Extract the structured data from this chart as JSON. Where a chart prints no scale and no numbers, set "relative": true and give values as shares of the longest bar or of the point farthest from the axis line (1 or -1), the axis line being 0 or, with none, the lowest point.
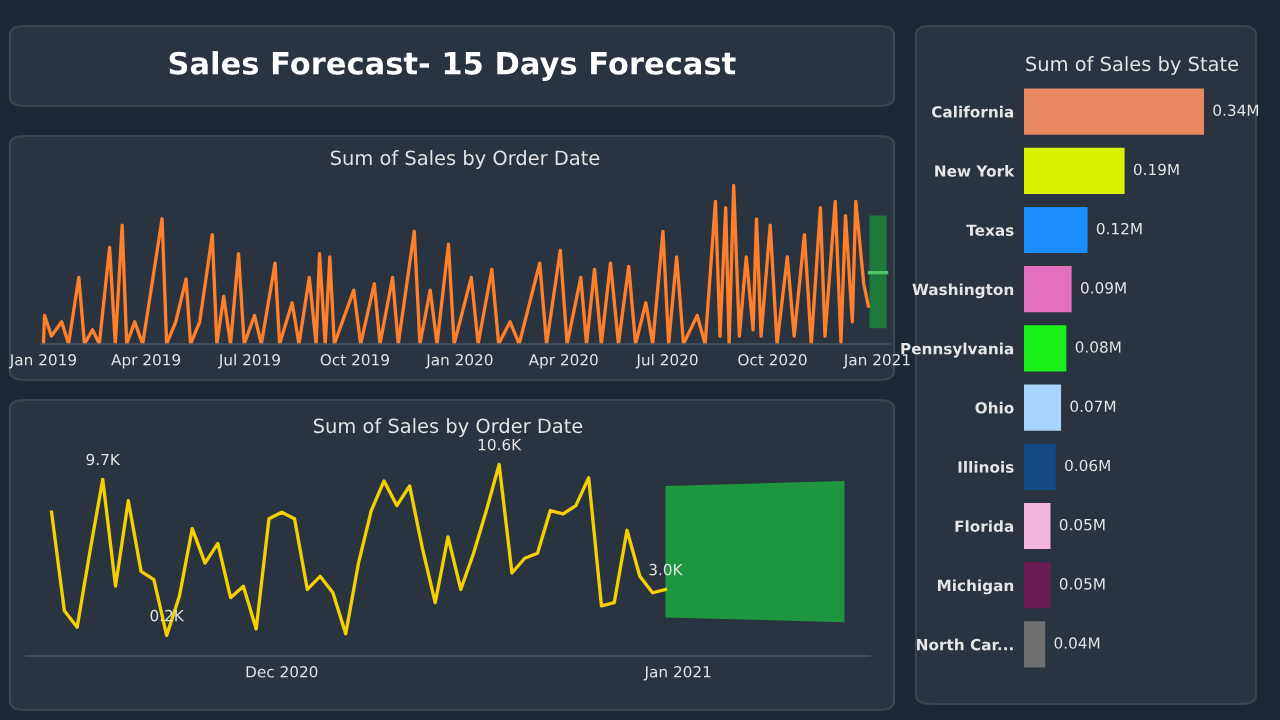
{
  "chart_data": [
    {
      "type": "other",
      "title": "Sales Forecast- 15 Days Forecast"
    },
    {
      "type": "line",
      "title": "Sum of Sales by Order Date",
      "relative": true,
      "tick_labels": "x",
      "xlim": [
        "2018-12-29",
        "2021-01-12"
      ],
      "xticks": [
        {
          "value": "2019-01-01",
          "label": "Jan 2019"
        },
        {
          "value": "2019-04-01",
          "label": "Apr 2019"
        },
        {
          "value": "2019-07-01",
          "label": "Jul 2019"
        },
        {
          "value": "2019-10-01",
          "label": "Oct 2019"
        },
        {
          "value": "2020-01-01",
          "label": "Jan 2020"
        },
        {
          "value": "2020-04-01",
          "label": "Apr 2020"
        },
        {
          "value": "2020-07-01",
          "label": "Jul 2020"
        },
        {
          "value": "2020-10-01",
          "label": "Oct 2020"
        },
        {
          "value": "2021-01-01",
          "label": "Jan 2021"
        }
      ],
      "series": [
        {
          "type": "line",
          "color": "#ff7f2a",
          "x": [
            "2019-01-01",
            "2019-01-02",
            "2019-01-08",
            "2019-01-17",
            "2019-01-23",
            "2019-02-01",
            "2019-02-06",
            "2019-02-13",
            "2019-02-19",
            "2019-02-28",
            "2019-03-05",
            "2019-03-11",
            "2019-03-15",
            "2019-03-22",
            "2019-03-29",
            "2019-04-15",
            "2019-04-19",
            "2019-04-27",
            "2019-05-06",
            "2019-05-10",
            "2019-05-18",
            "2019-05-29",
            "2019-06-02",
            "2019-06-08",
            "2019-06-14",
            "2019-06-21",
            "2019-06-26",
            "2019-07-05",
            "2019-07-11",
            "2019-07-23",
            "2019-07-27",
            "2019-08-07",
            "2019-08-13",
            "2019-08-22",
            "2019-08-28",
            "2019-08-31",
            "2019-09-05",
            "2019-09-09",
            "2019-09-13",
            "2019-09-30",
            "2019-10-06",
            "2019-10-18",
            "2019-10-23",
            "2019-11-03",
            "2019-11-08",
            "2019-11-22",
            "2019-11-27",
            "2019-12-06",
            "2019-12-12",
            "2019-12-22",
            "2019-12-27",
            "2020-01-11",
            "2020-01-17",
            "2020-01-29",
            "2020-02-04",
            "2020-02-14",
            "2020-02-22",
            "2020-03-11",
            "2020-03-17",
            "2020-03-29",
            "2020-04-04",
            "2020-04-16",
            "2020-04-21",
            "2020-04-28",
            "2020-05-04",
            "2020-05-12",
            "2020-05-19",
            "2020-05-28",
            "2020-06-03",
            "2020-06-12",
            "2020-06-18",
            "2020-06-27",
            "2020-07-02",
            "2020-07-09",
            "2020-07-15",
            "2020-07-27",
            "2020-08-03",
            "2020-08-12",
            "2020-08-16",
            "2020-08-21",
            "2020-08-24",
            "2020-08-28",
            "2020-09-02",
            "2020-09-08",
            "2020-09-14",
            "2020-09-17",
            "2020-09-21",
            "2020-09-29",
            "2020-10-05",
            "2020-10-14",
            "2020-10-20",
            "2020-10-29",
            "2020-11-04",
            "2020-11-12",
            "2020-11-16",
            "2020-11-25",
            "2020-11-30",
            "2020-12-04",
            "2020-12-10",
            "2020-12-13",
            "2020-12-20",
            "2020-12-24"
          ],
          "values": [
            0,
            0.18,
            0.05,
            0.14,
            0,
            0.42,
            0,
            0.09,
            0,
            0.61,
            0,
            0.75,
            0,
            0.14,
            0,
            0.79,
            0,
            0.14,
            0.41,
            0,
            0.14,
            0.69,
            0,
            0.3,
            0,
            0.57,
            0,
            0.18,
            0,
            0.51,
            0,
            0.26,
            0,
            0.42,
            0,
            0.57,
            0,
            0.55,
            0,
            0.34,
            0,
            0.38,
            0,
            0.42,
            0,
            0.71,
            0,
            0.34,
            0,
            0.63,
            0,
            0.42,
            0,
            0.47,
            0,
            0.14,
            0,
            0.51,
            0,
            0.59,
            0,
            0.42,
            0,
            0.47,
            0,
            0.51,
            0,
            0.49,
            0,
            0.26,
            0,
            0.71,
            0,
            0.55,
            0,
            0.18,
            0,
            0.9,
            0.05,
            0.86,
            0,
            1,
            0.05,
            0.55,
            0.09,
            0.79,
            0.05,
            0.75,
            0,
            0.55,
            0.05,
            0.69,
            0,
            0.86,
            0.05,
            0.9,
            0.01,
            0.81,
            0.14,
            0.9,
            0.38,
            0.24
          ]
        },
        {
          "type": "line",
          "color": "#1e7a3a",
          "x": [
            "2020-12-25",
            "2021-01-09"
          ],
          "values": [
            null,
            null
          ],
          "lower": [
            0.1,
            0.1
          ],
          "upper": [
            0.81,
            0.81
          ]
        },
        {
          "type": "line",
          "color": "#4fc26a",
          "x": [
            "2020-12-25",
            "2021-01-09"
          ],
          "values": [
            0.45,
            0.45
          ]
        }
      ]
    },
    {
      "type": "line",
      "title": "Sum of Sales by Order Date",
      "tick_labels": "x",
      "xlim": [
        "2020-11-11",
        "2021-01-16"
      ],
      "xticks": [
        {
          "value": "2020-12-01",
          "label": "Dec 2020"
        },
        {
          "value": "2021-01-01",
          "label": "Jan 2021"
        }
      ],
      "series": [
        {
          "type": "line",
          "color": "#f5d000",
          "x": [
            "2020-11-13",
            "2020-11-14",
            "2020-11-15",
            "2020-11-16",
            "2020-11-17",
            "2020-11-18",
            "2020-11-19",
            "2020-11-20",
            "2020-11-21",
            "2020-11-22",
            "2020-11-23",
            "2020-11-24",
            "2020-11-25",
            "2020-11-26",
            "2020-11-27",
            "2020-11-28",
            "2020-11-29",
            "2020-11-30",
            "2020-12-01",
            "2020-12-02",
            "2020-12-03",
            "2020-12-04",
            "2020-12-05",
            "2020-12-06",
            "2020-12-07",
            "2020-12-08",
            "2020-12-09",
            "2020-12-10",
            "2020-12-11",
            "2020-12-12",
            "2020-12-13",
            "2020-12-14",
            "2020-12-15",
            "2020-12-16",
            "2020-12-17",
            "2020-12-18",
            "2020-12-19",
            "2020-12-20",
            "2020-12-21",
            "2020-12-22",
            "2020-12-23",
            "2020-12-24",
            "2020-12-25",
            "2020-12-26",
            "2020-12-27",
            "2020-12-28",
            "2020-12-29",
            "2020-12-30",
            "2020-12-31"
          ],
          "values": [
            7700,
            1700,
            700,
            5300,
            9700,
            3200,
            8400,
            4100,
            3600,
            200,
            2600,
            6700,
            4600,
            5800,
            2500,
            3200,
            600,
            7300,
            7700,
            7300,
            3000,
            3800,
            2800,
            300,
            4600,
            7800,
            9600,
            8100,
            9300,
            5500,
            2200,
            6200,
            3000,
            5200,
            7800,
            10600,
            4000,
            4900,
            5200,
            7800,
            7600,
            8100,
            9800,
            2000,
            2200,
            6600,
            3800,
            2800,
            3000
          ],
          "value_labels": [
            null,
            null,
            null,
            null,
            "9.7K",
            null,
            null,
            null,
            null,
            "0.2K",
            null,
            null,
            null,
            null,
            null,
            null,
            null,
            null,
            null,
            null,
            null,
            null,
            null,
            null,
            null,
            null,
            null,
            null,
            null,
            null,
            null,
            null,
            null,
            null,
            null,
            "10.6K",
            null,
            null,
            null,
            null,
            null,
            null,
            null,
            null,
            null,
            null,
            null,
            null,
            "3.0K"
          ]
        },
        {
          "type": "line",
          "color": "#1e9640",
          "x": [
            "2020-12-31",
            "2021-01-14"
          ],
          "values": [
            null,
            null
          ],
          "lower": [
            1300,
            1000
          ],
          "upper": [
            9300,
            9600
          ]
        }
      ]
    },
    {
      "type": "bar",
      "title": "Sum of Sales by State",
      "orientation": "horizontal",
      "tick_labels": "y",
      "categories": [
        "California",
        "New York",
        "Texas",
        "Washington",
        "Pennsylvania",
        "Ohio",
        "Illinois",
        "Florida",
        "Michigan",
        "North Car..."
      ],
      "values": [
        0.34,
        0.19,
        0.12,
        0.09,
        0.08,
        0.07,
        0.06,
        0.05,
        0.05,
        0.04
      ],
      "value_labels": [
        "0.34M",
        "0.19M",
        "0.12M",
        "0.09M",
        "0.08M",
        "0.07M",
        "0.06M",
        "0.05M",
        "0.05M",
        "0.04M"
      ],
      "colors": [
        "#e8895f",
        "#d9f200",
        "#1a8cff",
        "#e46fbe",
        "#19f019",
        "#a8d4ff",
        "#124a86",
        "#f4b6dc",
        "#6b1c50",
        "#707070"
      ]
    }
  ]
}
